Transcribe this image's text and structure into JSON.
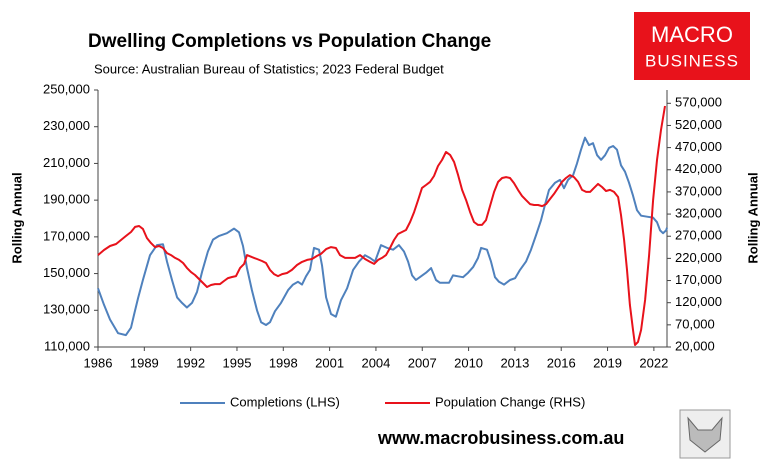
{
  "chart_data": {
    "type": "line",
    "title": "Dwelling Completions vs Population Change",
    "subtitle": "Source: Australian Bureau of Statistics; 2023 Federal Budget",
    "ylabel": "Rolling Annual",
    "y2label": "Rolling Annual",
    "logo": {
      "line1": "MACRO",
      "line2": "BUSINESS"
    },
    "website": "www.macrobusiness.com.au",
    "xlim": [
      1986,
      2022.85
    ],
    "xticks": [
      1986,
      1989,
      1992,
      1995,
      1998,
      2001,
      2004,
      2007,
      2010,
      2013,
      2016,
      2019,
      2022
    ],
    "ylim": [
      110000,
      250000
    ],
    "yticks": [
      {
        "value": 110000,
        "label": "110,000"
      },
      {
        "value": 130000,
        "label": "130,000"
      },
      {
        "value": 150000,
        "label": "150,000"
      },
      {
        "value": 170000,
        "label": "170,000"
      },
      {
        "value": 190000,
        "label": "190,000"
      },
      {
        "value": 210000,
        "label": "210,000"
      },
      {
        "value": 230000,
        "label": "230,000"
      },
      {
        "value": 250000,
        "label": "250,000"
      }
    ],
    "y2lim": [
      20000,
      600000
    ],
    "y2ticks": [
      {
        "value": 20000,
        "label": "20,000"
      },
      {
        "value": 70000,
        "label": "70,000"
      },
      {
        "value": 120000,
        "label": "120,000"
      },
      {
        "value": 170000,
        "label": "170,000"
      },
      {
        "value": 220000,
        "label": "220,000"
      },
      {
        "value": 270000,
        "label": "270,000"
      },
      {
        "value": 320000,
        "label": "320,000"
      },
      {
        "value": 370000,
        "label": "370,000"
      },
      {
        "value": 420000,
        "label": "420,000"
      },
      {
        "value": 470000,
        "label": "470,000"
      },
      {
        "value": 520000,
        "label": "520,000"
      },
      {
        "value": 570000,
        "label": "570,000"
      }
    ],
    "grid": false,
    "legend": "bottom",
    "series": [
      {
        "name": "Completions (LHS)",
        "color": "#4f81bd",
        "axis": "y",
        "x": [
          1986.0,
          1986.39,
          1986.78,
          1987.3,
          1987.81,
          1988.14,
          1988.33,
          1988.59,
          1988.91,
          1989.37,
          1989.82,
          1990.21,
          1990.47,
          1990.79,
          1991.12,
          1991.44,
          1991.76,
          1992.09,
          1992.41,
          1992.74,
          1993.12,
          1993.45,
          1993.84,
          1994.35,
          1994.81,
          1995.13,
          1995.39,
          1995.65,
          1995.97,
          1996.3,
          1996.56,
          1996.88,
          1997.14,
          1997.46,
          1997.85,
          1998.31,
          1998.63,
          1998.95,
          1999.21,
          1999.47,
          1999.73,
          1999.99,
          2000.31,
          2000.51,
          2000.77,
          2001.09,
          2001.41,
          2001.74,
          2002.13,
          2002.52,
          2002.9,
          2003.29,
          2003.62,
          2003.94,
          2004.33,
          2004.72,
          2005.11,
          2005.49,
          2005.82,
          2006.08,
          2006.34,
          2006.59,
          2006.92,
          2007.24,
          2007.57,
          2007.89,
          2008.15,
          2008.73,
          2008.99,
          2009.32,
          2009.64,
          2009.97,
          2010.29,
          2010.61,
          2010.81,
          2011.19,
          2011.45,
          2011.71,
          2011.97,
          2012.3,
          2012.68,
          2013.01,
          2013.33,
          2013.72,
          2014.04,
          2014.37,
          2014.69,
          2014.95,
          2015.21,
          2015.6,
          2015.92,
          2016.18,
          2016.44,
          2016.76,
          2017.02,
          2017.28,
          2017.54,
          2017.8,
          2018.06,
          2018.32,
          2018.58,
          2018.84,
          2019.1,
          2019.36,
          2019.61,
          2019.87,
          2020.13,
          2020.39,
          2020.65,
          2020.91,
          2021.17,
          2021.56,
          2021.95,
          2022.2,
          2022.4,
          2022.59,
          2022.79,
          2022.85
        ],
        "values": [
          142000,
          133000,
          125000,
          117500,
          116500,
          120500,
          127500,
          136500,
          146500,
          160000,
          165500,
          166000,
          156500,
          146500,
          137000,
          134000,
          131500,
          134000,
          140000,
          151000,
          162000,
          168500,
          170500,
          172000,
          174500,
          172500,
          165000,
          153000,
          141000,
          130000,
          123500,
          122000,
          123500,
          129500,
          134000,
          141000,
          144000,
          145500,
          144000,
          148500,
          152000,
          164000,
          163000,
          154500,
          137000,
          128000,
          126500,
          135500,
          142000,
          152000,
          156500,
          160000,
          158500,
          156500,
          165500,
          164000,
          163000,
          165500,
          162000,
          156500,
          149000,
          146500,
          148500,
          150500,
          153000,
          146500,
          145000,
          145000,
          149000,
          148500,
          148000,
          150500,
          153500,
          158500,
          164000,
          163000,
          156500,
          148000,
          145500,
          144000,
          146500,
          147500,
          152000,
          156500,
          163000,
          171000,
          179000,
          187500,
          195500,
          199500,
          201000,
          196500,
          201000,
          203500,
          210000,
          217500,
          224000,
          220000,
          221000,
          214500,
          212000,
          214500,
          218500,
          219500,
          217500,
          209000,
          205500,
          199500,
          192500,
          184500,
          181500,
          181000,
          180500,
          178000,
          173500,
          172000,
          173500,
          175000
        ]
      },
      {
        "name": "Population Change (RHS)",
        "color": "#e8121b",
        "axis": "y2",
        "x": [
          1986.0,
          1986.39,
          1986.78,
          1987.17,
          1987.49,
          1987.81,
          1988.14,
          1988.4,
          1988.66,
          1988.91,
          1989.17,
          1989.43,
          1989.69,
          1989.95,
          1990.21,
          1990.47,
          1990.73,
          1990.99,
          1991.25,
          1991.51,
          1991.76,
          1992.02,
          1992.28,
          1992.54,
          1992.8,
          1993.06,
          1993.32,
          1993.58,
          1993.9,
          1994.16,
          1994.42,
          1994.68,
          1994.94,
          1995.2,
          1995.46,
          1995.65,
          1995.97,
          1996.3,
          1996.62,
          1996.88,
          1997.14,
          1997.4,
          1997.66,
          1997.92,
          1998.24,
          1998.56,
          1998.89,
          1999.21,
          1999.54,
          1999.86,
          2000.18,
          2000.44,
          2000.77,
          2001.09,
          2001.41,
          2001.67,
          2002.0,
          2002.32,
          2002.65,
          2002.97,
          2003.29,
          2003.62,
          2003.88,
          2004.14,
          2004.39,
          2004.65,
          2004.91,
          2005.17,
          2005.43,
          2005.69,
          2005.95,
          2006.21,
          2006.47,
          2006.73,
          2006.98,
          2007.24,
          2007.5,
          2007.76,
          2008.02,
          2008.28,
          2008.54,
          2008.8,
          2009.06,
          2009.32,
          2009.58,
          2009.84,
          2010.1,
          2010.35,
          2010.61,
          2010.87,
          2011.13,
          2011.39,
          2011.65,
          2011.91,
          2012.17,
          2012.43,
          2012.68,
          2012.94,
          2013.2,
          2013.46,
          2013.72,
          2013.98,
          2014.24,
          2014.5,
          2014.76,
          2015.02,
          2015.27,
          2015.53,
          2015.79,
          2016.05,
          2016.31,
          2016.57,
          2016.83,
          2017.09,
          2017.35,
          2017.61,
          2017.87,
          2018.12,
          2018.38,
          2018.64,
          2018.9,
          2019.16,
          2019.42,
          2019.68,
          2019.87,
          2020.07,
          2020.26,
          2020.45,
          2020.65,
          2020.78,
          2020.97,
          2021.17,
          2021.43,
          2021.69,
          2021.95,
          2022.2,
          2022.46,
          2022.72
        ],
        "values": [
          227500,
          239000,
          248000,
          252500,
          261500,
          270500,
          279500,
          291000,
          293000,
          286500,
          266000,
          254500,
          245500,
          248000,
          243500,
          232000,
          227500,
          221000,
          216500,
          209500,
          198500,
          189000,
          182500,
          173500,
          164500,
          155500,
          160000,
          162000,
          162000,
          169000,
          175500,
          178000,
          180000,
          198500,
          207500,
          227500,
          223000,
          218500,
          214000,
          209500,
          194000,
          184500,
          180000,
          184500,
          187000,
          194000,
          205000,
          212000,
          216500,
          218500,
          225500,
          230000,
          241000,
          245500,
          243500,
          227500,
          221000,
          221000,
          221000,
          227500,
          218500,
          212000,
          207500,
          216500,
          221000,
          227500,
          243500,
          261500,
          275000,
          279500,
          284000,
          302000,
          324500,
          351500,
          379000,
          385500,
          392500,
          406000,
          428500,
          442000,
          460000,
          453500,
          437500,
          408000,
          374500,
          351500,
          324500,
          302000,
          295500,
          295500,
          306500,
          338000,
          370000,
          392500,
          401500,
          403500,
          401500,
          390000,
          374500,
          361000,
          351500,
          342500,
          340500,
          340500,
          338000,
          342500,
          354000,
          365500,
          379000,
          392500,
          401500,
          408000,
          403500,
          392500,
          374500,
          370000,
          370000,
          379000,
          388000,
          381000,
          372000,
          374500,
          370000,
          358500,
          318000,
          261500,
          194000,
          115000,
          58500,
          24500,
          31500,
          58500,
          126000,
          227500,
          351500,
          442000,
          510000,
          564000
        ]
      }
    ]
  }
}
